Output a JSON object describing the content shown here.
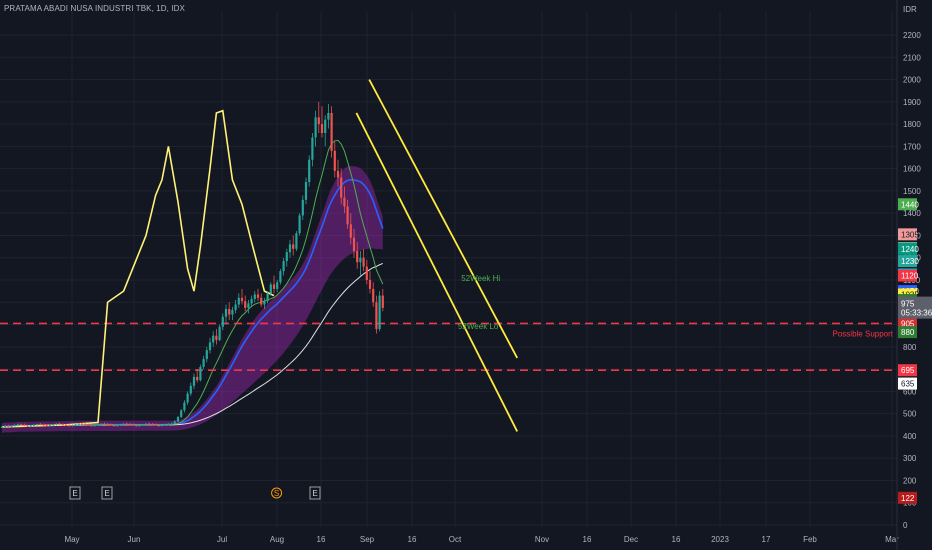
{
  "header": {
    "title": "PRATAMA ABADI NUSA INDUSTRI TBK, 1D, IDX",
    "currency": "IDR"
  },
  "colors": {
    "background": "#131722",
    "grid": "#1f2330",
    "axis_text": "#b2b5be",
    "support_line": "#f23645",
    "trend_line": "#ffeb3b",
    "overlay_line": "#fff176",
    "cloud_fill": "#9c27b0"
  },
  "chart_data": {
    "type": "candlestick",
    "x_ticks": [
      "May",
      "Jun",
      "Jul",
      "Aug",
      "16",
      "Sep",
      "16",
      "Oct",
      "Nov",
      "16",
      "Dec",
      "16",
      "2023",
      "17",
      "Feb",
      "Mar"
    ],
    "y_ticks": [
      0,
      100,
      200,
      300,
      400,
      500,
      600,
      700,
      800,
      900,
      1000,
      1100,
      1200,
      1300,
      1400,
      1500,
      1600,
      1700,
      1800,
      1900,
      2000,
      2100,
      2200
    ],
    "ylim": [
      0,
      2200
    ],
    "grid": true,
    "price_badges": [
      {
        "value": "1440",
        "color": "#4caf50",
        "text_color": "#ffffff",
        "price": 1440
      },
      {
        "value": "1305",
        "color": "#ef9a9a",
        "text_color": "#131722",
        "price": 1305
      },
      {
        "value": "1243",
        "color": "#a5d6a7",
        "text_color": "#131722",
        "price": 1243
      },
      {
        "value": "1240",
        "color": "#089981",
        "text_color": "#ffffff",
        "price": 1240
      },
      {
        "value": "1230",
        "color": "#26a69a",
        "text_color": "#ffffff",
        "price": 1185
      },
      {
        "value": "1125",
        "color": "#00bcd4",
        "text_color": "#131722",
        "price": 1125
      },
      {
        "value": "1120",
        "color": "#f23645",
        "text_color": "#ffffff",
        "price": 1120
      },
      {
        "value": "1050",
        "color": "#2962ff",
        "text_color": "#ffffff",
        "price": 1050
      },
      {
        "value": "1035",
        "color": "#ffeb3b",
        "text_color": "#131722",
        "price": 1035
      },
      {
        "value": "1010",
        "color": "#2e7d32",
        "text_color": "#ffffff",
        "price": 1010
      },
      {
        "value": "975",
        "color": "#ffeb3b",
        "text_color": "#131722",
        "price": 935
      },
      {
        "value": "905",
        "color": "#d32f2f",
        "text_color": "#ffffff",
        "price": 905
      },
      {
        "value": "880",
        "color": "#2e7d32",
        "text_color": "#ffffff",
        "price": 866
      },
      {
        "value": "695",
        "color": "#f23645",
        "text_color": "#ffffff",
        "price": 695
      },
      {
        "value": "635",
        "color": "#ffffff",
        "text_color": "#131722",
        "price": 635
      },
      {
        "value": "122",
        "color": "#b71c1c",
        "text_color": "#ffffff",
        "price": 122
      }
    ],
    "last_price": {
      "value": "975",
      "countdown": "05:33:36",
      "price": 985
    },
    "support_levels": [
      {
        "price": 905,
        "label": "Possible Support"
      },
      {
        "price": 695,
        "label": ""
      }
    ],
    "annotations": [
      {
        "text": "52Week Hi",
        "date_index": 116,
        "price": 1095,
        "color": "#4caf50"
      },
      {
        "text": "52Week Lo",
        "date_index": 115,
        "price": 880,
        "color": "#4caf50"
      }
    ],
    "event_markers": [
      {
        "label": "E",
        "date_index": 15,
        "type": "earnings"
      },
      {
        "label": "E",
        "date_index": 25,
        "type": "earnings"
      },
      {
        "label": "S",
        "date_index": 78,
        "type": "split"
      },
      {
        "label": "E",
        "date_index": 90,
        "type": "earnings"
      }
    ],
    "trend_channel": {
      "upper": [
        [
          96,
          2000
        ],
        [
          136,
          750
        ]
      ],
      "lower": [
        [
          92,
          1850
        ],
        [
          136,
          420
        ]
      ]
    },
    "overlay_line": [
      [
        0,
        440
      ],
      [
        20,
        450
      ],
      [
        30,
        460
      ],
      [
        33,
        1000
      ],
      [
        38,
        1050
      ],
      [
        45,
        1300
      ],
      [
        48,
        1480
      ],
      [
        50,
        1550
      ],
      [
        52,
        1700
      ],
      [
        55,
        1450
      ],
      [
        58,
        1150
      ],
      [
        60,
        1050
      ],
      [
        62,
        1250
      ],
      [
        65,
        1600
      ],
      [
        67,
        1850
      ],
      [
        69,
        1860
      ],
      [
        72,
        1550
      ],
      [
        75,
        1440
      ],
      [
        78,
        1270
      ],
      [
        80,
        1160
      ],
      [
        82,
        1050
      ],
      [
        85,
        1030
      ]
    ],
    "candles": [
      [
        440,
        445,
        435,
        440
      ],
      [
        440,
        448,
        437,
        445
      ],
      [
        445,
        450,
        440,
        442
      ],
      [
        442,
        448,
        438,
        445
      ],
      [
        445,
        452,
        442,
        448
      ],
      [
        448,
        455,
        444,
        452
      ],
      [
        452,
        456,
        446,
        450
      ],
      [
        450,
        455,
        444,
        446
      ],
      [
        446,
        450,
        440,
        444
      ],
      [
        444,
        449,
        439,
        447
      ],
      [
        447,
        452,
        443,
        450
      ],
      [
        450,
        455,
        446,
        453
      ],
      [
        453,
        458,
        448,
        451
      ],
      [
        451,
        455,
        445,
        448
      ],
      [
        448,
        452,
        442,
        446
      ],
      [
        446,
        451,
        441,
        449
      ],
      [
        449,
        454,
        444,
        452
      ],
      [
        452,
        457,
        447,
        455
      ],
      [
        455,
        460,
        450,
        453
      ],
      [
        453,
        457,
        447,
        450
      ],
      [
        450,
        455,
        445,
        448
      ],
      [
        448,
        452,
        442,
        446
      ],
      [
        446,
        451,
        441,
        449
      ],
      [
        449,
        454,
        444,
        452
      ],
      [
        452,
        457,
        447,
        455
      ],
      [
        455,
        460,
        450,
        453
      ],
      [
        453,
        458,
        448,
        451
      ],
      [
        451,
        455,
        445,
        448
      ],
      [
        448,
        452,
        442,
        446
      ],
      [
        446,
        451,
        441,
        449
      ],
      [
        449,
        454,
        444,
        452
      ],
      [
        452,
        457,
        447,
        455
      ],
      [
        455,
        460,
        450,
        453
      ],
      [
        453,
        458,
        448,
        451
      ],
      [
        451,
        455,
        445,
        448
      ],
      [
        448,
        452,
        442,
        446
      ],
      [
        446,
        451,
        441,
        449
      ],
      [
        449,
        454,
        444,
        452
      ],
      [
        452,
        457,
        447,
        455
      ],
      [
        455,
        460,
        450,
        453
      ],
      [
        453,
        458,
        448,
        451
      ],
      [
        451,
        455,
        445,
        448
      ],
      [
        448,
        452,
        442,
        446
      ],
      [
        446,
        451,
        441,
        449
      ],
      [
        449,
        454,
        444,
        452
      ],
      [
        452,
        457,
        447,
        455
      ],
      [
        455,
        460,
        450,
        453
      ],
      [
        453,
        458,
        448,
        451
      ],
      [
        451,
        455,
        445,
        448
      ],
      [
        448,
        452,
        442,
        446
      ],
      [
        446,
        451,
        441,
        449
      ],
      [
        449,
        454,
        444,
        452
      ],
      [
        452,
        457,
        447,
        455
      ],
      [
        455,
        460,
        450,
        455
      ],
      [
        455,
        470,
        452,
        465
      ],
      [
        465,
        490,
        460,
        485
      ],
      [
        485,
        520,
        480,
        515
      ],
      [
        515,
        560,
        505,
        550
      ],
      [
        550,
        600,
        540,
        590
      ],
      [
        590,
        640,
        580,
        625
      ],
      [
        625,
        680,
        610,
        665
      ],
      [
        665,
        700,
        640,
        650
      ],
      [
        650,
        720,
        645,
        710
      ],
      [
        710,
        760,
        700,
        745
      ],
      [
        745,
        800,
        730,
        785
      ],
      [
        785,
        840,
        770,
        820
      ],
      [
        820,
        870,
        800,
        850
      ],
      [
        850,
        880,
        810,
        830
      ],
      [
        830,
        900,
        825,
        890
      ],
      [
        890,
        950,
        875,
        935
      ],
      [
        935,
        990,
        900,
        970
      ],
      [
        970,
        1000,
        920,
        945
      ],
      [
        945,
        980,
        920,
        965
      ],
      [
        965,
        1010,
        950,
        990
      ],
      [
        990,
        1040,
        975,
        1020
      ],
      [
        1020,
        1060,
        990,
        1005
      ],
      [
        1005,
        1030,
        960,
        975
      ],
      [
        975,
        1010,
        950,
        995
      ],
      [
        995,
        1030,
        980,
        1015
      ],
      [
        1015,
        1050,
        1000,
        1035
      ],
      [
        1035,
        1060,
        1005,
        1020
      ],
      [
        1020,
        1040,
        980,
        990
      ],
      [
        990,
        1020,
        970,
        1005
      ],
      [
        1005,
        1050,
        995,
        1040
      ],
      [
        1040,
        1090,
        1030,
        1080
      ],
      [
        1080,
        1120,
        1040,
        1060
      ],
      [
        1060,
        1100,
        1045,
        1090
      ],
      [
        1090,
        1150,
        1080,
        1140
      ],
      [
        1140,
        1200,
        1120,
        1185
      ],
      [
        1185,
        1240,
        1160,
        1225
      ],
      [
        1225,
        1280,
        1200,
        1260
      ],
      [
        1260,
        1300,
        1210,
        1240
      ],
      [
        1240,
        1320,
        1230,
        1310
      ],
      [
        1310,
        1400,
        1300,
        1390
      ],
      [
        1390,
        1480,
        1370,
        1460
      ],
      [
        1460,
        1560,
        1440,
        1540
      ],
      [
        1540,
        1660,
        1520,
        1640
      ],
      [
        1640,
        1760,
        1610,
        1740
      ],
      [
        1740,
        1860,
        1700,
        1830
      ],
      [
        1830,
        1900,
        1760,
        1800
      ],
      [
        1800,
        1880,
        1740,
        1760
      ],
      [
        1760,
        1840,
        1700,
        1820
      ],
      [
        1820,
        1890,
        1780,
        1850
      ],
      [
        1850,
        1880,
        1650,
        1680
      ],
      [
        1680,
        1720,
        1560,
        1590
      ],
      [
        1590,
        1640,
        1520,
        1560
      ],
      [
        1560,
        1600,
        1440,
        1470
      ],
      [
        1470,
        1520,
        1400,
        1430
      ],
      [
        1430,
        1460,
        1330,
        1350
      ],
      [
        1350,
        1400,
        1260,
        1290
      ],
      [
        1290,
        1330,
        1200,
        1230
      ],
      [
        1230,
        1270,
        1150,
        1180
      ],
      [
        1180,
        1230,
        1120,
        1200
      ],
      [
        1200,
        1240,
        1140,
        1160
      ],
      [
        1160,
        1190,
        1080,
        1100
      ],
      [
        1100,
        1140,
        1040,
        1060
      ],
      [
        1060,
        1090,
        980,
        1000
      ],
      [
        1000,
        1030,
        860,
        880
      ],
      [
        880,
        1050,
        870,
        1030
      ],
      [
        1030,
        1060,
        960,
        975
      ]
    ]
  }
}
